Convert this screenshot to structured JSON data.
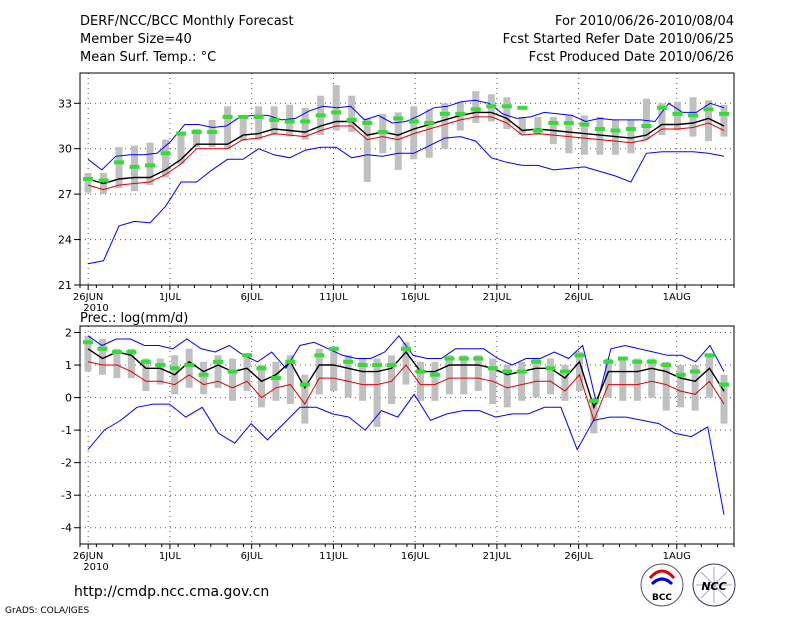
{
  "header": {
    "left": [
      "DERF/NCC/BCC Monthly Forecast",
      "Member Size=40",
      "Mean Surf. Temp.: °C"
    ],
    "right": [
      "For 2010/06/26-2010/08/04",
      "Fcst Started Refer Date 2010/06/25",
      "Fcst Produced Date 2010/06/26"
    ]
  },
  "footer": {
    "url": "http://cmdp.ncc.cma.gov.cn",
    "grads": "GrADS: COLA/IGES",
    "logo_left_text": "BCC",
    "logo_right_text": "NCC"
  },
  "colors": {
    "envelope": "#0000ff",
    "mean": "#000000",
    "median": "#e00000",
    "climatology": "#33dd33",
    "box": "#c0c0c0"
  },
  "chart_data": [
    {
      "type": "line",
      "title": "Mean Surf. Temp.: °C",
      "x_tick_labels": [
        "26JUN",
        "1JUL",
        "6JUL",
        "11JUL",
        "16JUL",
        "21JUL",
        "26JUL",
        "1AUG"
      ],
      "x_year_label": "2010",
      "x_tick_days": [
        1,
        6,
        11,
        16,
        21,
        26,
        31,
        37
      ],
      "days": 40,
      "ylim": [
        21,
        35
      ],
      "y_ticks": [
        21,
        24,
        27,
        30,
        33
      ],
      "series": [
        {
          "name": "ensemble max",
          "values": [
            29.3,
            28.6,
            29.5,
            29.6,
            29.6,
            29.7,
            30.5,
            31.6,
            31.6,
            31.4,
            31.5,
            32.1,
            32.2,
            32.2,
            31.9,
            32.0,
            32.5,
            32.8,
            32.7,
            32.8,
            31.9,
            32.2,
            31.7,
            31.8,
            32.2,
            32.7,
            32.8,
            33.1,
            33.2,
            33.0,
            32.3,
            32.0,
            32.1,
            32.4,
            32.3,
            32.2,
            31.8,
            32.0,
            31.9,
            31.9,
            31.9,
            31.8,
            33.0,
            32.4,
            32.4,
            33.0,
            32.7
          ]
        },
        {
          "name": "ensemble mean",
          "values": [
            28.0,
            27.7,
            28.0,
            28.1,
            28.1,
            28.6,
            29.3,
            30.3,
            30.3,
            30.3,
            30.9,
            31.0,
            31.3,
            31.2,
            31.1,
            31.5,
            31.8,
            31.8,
            30.9,
            31.1,
            30.9,
            31.3,
            31.6,
            31.9,
            32.2,
            32.4,
            32.4,
            32.0,
            31.2,
            31.3,
            31.2,
            31.1,
            31.0,
            30.9,
            30.8,
            30.7,
            30.9,
            31.6,
            31.6,
            31.7,
            32.0,
            31.5
          ]
        },
        {
          "name": "ensemble median",
          "values": [
            27.6,
            27.3,
            27.6,
            27.7,
            27.8,
            28.3,
            29.0,
            30.0,
            30.0,
            30.0,
            30.6,
            30.7,
            31.0,
            30.9,
            30.8,
            31.2,
            31.5,
            31.5,
            30.6,
            30.8,
            30.6,
            31.0,
            31.3,
            31.6,
            31.9,
            32.1,
            32.1,
            31.7,
            30.9,
            31.0,
            30.9,
            30.8,
            30.7,
            30.6,
            30.5,
            30.4,
            30.6,
            31.3,
            31.3,
            31.4,
            31.7,
            31.2
          ]
        },
        {
          "name": "ensemble min",
          "values": [
            22.4,
            22.6,
            24.9,
            25.2,
            25.1,
            26.2,
            27.8,
            27.8,
            28.6,
            29.3,
            29.3,
            30.0,
            29.6,
            29.4,
            29.9,
            30.1,
            30.1,
            29.4,
            29.6,
            29.5,
            29.7,
            29.7,
            30.2,
            30.7,
            30.8,
            30.5,
            29.4,
            29.1,
            28.9,
            28.9,
            28.6,
            28.7,
            28.8,
            28.5,
            28.2,
            27.8,
            29.7,
            29.8,
            29.8,
            29.8,
            29.7,
            29.5
          ]
        },
        {
          "name": "climatology",
          "values": [
            28.0,
            27.9,
            29.1,
            28.8,
            28.9,
            29.7,
            31.0,
            31.1,
            31.1,
            32.1,
            32.1,
            32.1,
            31.9,
            31.8,
            31.8,
            32.2,
            32.4,
            31.9,
            31.7,
            31.1,
            32.0,
            31.8,
            31.7,
            32.3,
            32.3,
            32.6,
            32.8,
            32.8,
            32.7,
            31.2,
            31.7,
            31.7,
            31.6,
            31.3,
            31.2,
            31.3,
            31.5,
            32.7,
            32.3,
            32.2,
            32.6,
            32.3
          ]
        }
      ],
      "boxes": [
        [
          27.1,
          28.4
        ],
        [
          27.0,
          28.4
        ],
        [
          27.4,
          30.1
        ],
        [
          27.2,
          30.2
        ],
        [
          27.6,
          30.4
        ],
        [
          28.1,
          30.6
        ],
        [
          29.0,
          31.1
        ],
        [
          30.1,
          31.3
        ],
        [
          30.1,
          31.9
        ],
        [
          30.0,
          32.8
        ],
        [
          30.5,
          32.2
        ],
        [
          30.6,
          32.8
        ],
        [
          30.9,
          32.8
        ],
        [
          30.8,
          32.9
        ],
        [
          30.6,
          32.7
        ],
        [
          30.9,
          33.5
        ],
        [
          31.2,
          34.2
        ],
        [
          31.1,
          33.5
        ],
        [
          27.8,
          32.0
        ],
        [
          29.7,
          32.3
        ],
        [
          28.6,
          32.4
        ],
        [
          29.3,
          32.8
        ],
        [
          29.4,
          32.6
        ],
        [
          30.0,
          33.0
        ],
        [
          31.2,
          33.1
        ],
        [
          31.7,
          33.8
        ],
        [
          31.8,
          33.6
        ],
        [
          31.3,
          33.4
        ],
        [
          30.9,
          32.1
        ],
        [
          30.9,
          32.1
        ],
        [
          30.3,
          32.1
        ],
        [
          29.7,
          32.2
        ],
        [
          29.6,
          32.2
        ],
        [
          29.6,
          32.1
        ],
        [
          29.6,
          31.9
        ],
        [
          29.7,
          31.9
        ],
        [
          30.6,
          33.3
        ],
        [
          30.9,
          33.0
        ],
        [
          31.2,
          33.1
        ],
        [
          30.8,
          33.4
        ],
        [
          30.5,
          33.2
        ],
        [
          30.8,
          32.9
        ]
      ]
    },
    {
      "type": "line",
      "title": "Prec.: log(mm/d)",
      "x_tick_labels": [
        "26JUN",
        "1JUL",
        "6JUL",
        "11JUL",
        "16JUL",
        "21JUL",
        "26JUL",
        "1AUG"
      ],
      "x_year_label": "2010",
      "x_tick_days": [
        1,
        6,
        11,
        16,
        21,
        26,
        31,
        37
      ],
      "days": 40,
      "ylim": [
        -4.5,
        2.2
      ],
      "y_ticks": [
        -4,
        -3,
        -2,
        -1,
        0,
        1,
        2
      ],
      "series": [
        {
          "name": "ensemble max",
          "values": [
            1.9,
            1.6,
            1.8,
            1.8,
            1.6,
            1.6,
            1.5,
            1.8,
            1.5,
            1.4,
            1.6,
            1.3,
            1.1,
            1.4,
            0.9,
            1.6,
            1.7,
            1.5,
            1.3,
            1.2,
            1.2,
            1.4,
            1.9,
            1.3,
            1.2,
            1.2,
            1.5,
            1.5,
            1.5,
            1.2,
            1.0,
            1.2,
            1.2,
            1.4,
            1.2,
            1.6,
            -0.2,
            1.5,
            1.6,
            1.5,
            1.4,
            1.3,
            1.3,
            1.1,
            1.6,
            0.8
          ]
        },
        {
          "name": "ensemble mean",
          "values": [
            1.5,
            1.2,
            1.4,
            1.3,
            0.9,
            0.9,
            0.7,
            1.1,
            0.8,
            1.0,
            0.8,
            0.9,
            0.5,
            0.7,
            1.1,
            0.3,
            1.0,
            1.0,
            0.9,
            0.8,
            0.8,
            0.9,
            1.4,
            0.8,
            0.8,
            1.0,
            1.0,
            1.0,
            0.9,
            0.7,
            0.8,
            0.9,
            0.9,
            0.6,
            1.1,
            -0.3,
            0.8,
            0.8,
            0.8,
            0.9,
            0.8,
            0.6,
            0.5,
            0.9,
            0.2
          ]
        },
        {
          "name": "ensemble median",
          "values": [
            1.1,
            1.0,
            1.0,
            0.8,
            0.5,
            0.5,
            0.4,
            0.7,
            0.4,
            0.5,
            0.3,
            0.5,
            0.0,
            0.3,
            0.4,
            -0.2,
            0.6,
            0.6,
            0.5,
            0.4,
            0.4,
            0.5,
            1.0,
            0.4,
            0.4,
            0.6,
            0.6,
            0.6,
            0.5,
            0.3,
            0.4,
            0.5,
            0.5,
            0.2,
            0.7,
            -0.7,
            0.4,
            0.4,
            0.4,
            0.5,
            0.4,
            0.2,
            0.1,
            0.5,
            -0.2
          ]
        },
        {
          "name": "ensemble min",
          "values": [
            -1.6,
            -1.0,
            -0.7,
            -0.3,
            -0.2,
            -0.2,
            -0.6,
            -0.3,
            -1.1,
            -1.4,
            -0.8,
            -1.3,
            -0.8,
            -0.3,
            -0.3,
            -0.5,
            -0.6,
            -1.0,
            -0.4,
            -0.6,
            0.1,
            -0.7,
            -0.5,
            -0.4,
            -0.4,
            -0.6,
            -0.5,
            -0.5,
            -0.3,
            -0.3,
            -1.6,
            -0.7,
            -0.6,
            -0.6,
            -0.7,
            -0.8,
            -1.1,
            -1.2,
            -0.9,
            -3.6
          ]
        },
        {
          "name": "climatology",
          "values": [
            1.7,
            1.5,
            1.4,
            1.4,
            1.1,
            1.0,
            0.9,
            1.0,
            0.7,
            1.1,
            0.8,
            1.3,
            0.9,
            0.6,
            1.1,
            0.4,
            1.3,
            1.5,
            1.1,
            1.0,
            1.0,
            1.0,
            1.5,
            0.8,
            0.7,
            1.2,
            1.2,
            1.2,
            0.9,
            0.8,
            0.8,
            1.1,
            0.9,
            0.8,
            1.3,
            -0.1,
            1.1,
            1.2,
            1.1,
            1.1,
            1.0,
            0.7,
            0.8,
            1.3,
            0.4
          ]
        },
        {
          "name": "box_low",
          "values": [
            0.8,
            0.7,
            0.6,
            0.6,
            0.2,
            0.4,
            0.1,
            0.3,
            0.1,
            0.3,
            -0.1,
            0.2,
            -0.3,
            -0.1,
            -0.2,
            -0.8,
            0.1,
            0.2,
            0.0,
            -0.1,
            -0.9,
            -0.2,
            0.4,
            -0.1,
            -0.1,
            0.1,
            0.1,
            0.2,
            -0.2,
            -0.3,
            -0.1,
            0.0,
            0.1,
            -0.1,
            0.2,
            -1.1,
            0.0,
            -0.1,
            -0.1,
            0.0,
            -0.4,
            -0.3,
            -0.4,
            0.0,
            -0.8
          ]
        },
        {
          "name": "box_high",
          "values": [
            1.9,
            1.8,
            1.5,
            1.5,
            1.2,
            1.2,
            1.3,
            1.5,
            1.1,
            1.3,
            1.2,
            1.3,
            1.0,
            1.1,
            1.3,
            0.7,
            1.5,
            1.5,
            1.3,
            1.2,
            1.2,
            1.3,
            1.7,
            1.1,
            1.1,
            1.3,
            1.3,
            1.3,
            1.2,
            1.0,
            1.1,
            1.2,
            1.2,
            1.0,
            1.4,
            0.0,
            1.2,
            1.2,
            1.2,
            1.2,
            1.1,
            1.0,
            1.0,
            1.3,
            0.7
          ]
        }
      ]
    }
  ]
}
